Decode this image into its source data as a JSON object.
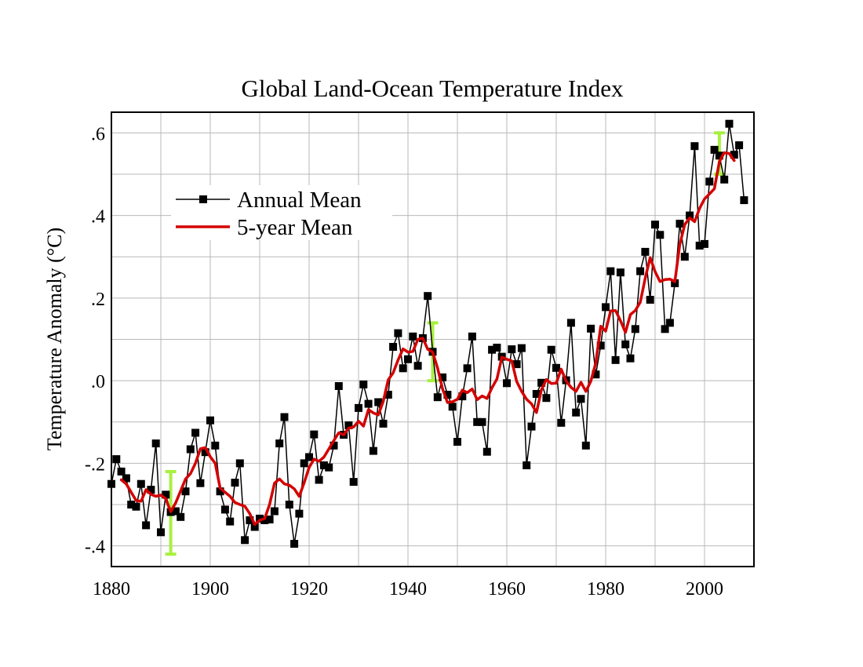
{
  "chart_data": {
    "type": "line",
    "title": "Global Land-Ocean Temperature Index",
    "xlabel": "",
    "ylabel": "Temperature Anomaly (°C)",
    "xlim": [
      1880,
      2010
    ],
    "ylim": [
      -0.45,
      0.65
    ],
    "grid": true,
    "x_grid_step": 10,
    "y_grid_step": 0.1,
    "x_ticks": [
      1880,
      1900,
      1920,
      1940,
      1960,
      1980,
      2000
    ],
    "x_tick_labels": [
      "1880",
      "1900",
      "1920",
      "1940",
      "1960",
      "1980",
      "2000"
    ],
    "y_ticks": [
      -0.4,
      -0.2,
      0.0,
      0.2,
      0.4,
      0.6
    ],
    "y_tick_labels": [
      "-.4",
      "-.2",
      ".0",
      ".2",
      ".4",
      ".6"
    ],
    "legend_position": "upper-left",
    "colors": {
      "annual": "#000000",
      "five_year": "#d40000",
      "error_bar": "#a8f040",
      "grid": "#b8b8b8",
      "frame": "#000000"
    },
    "series": [
      {
        "name": "Annual Mean",
        "style": "line-with-square-markers",
        "x": [
          1880,
          1881,
          1882,
          1883,
          1884,
          1885,
          1886,
          1887,
          1888,
          1889,
          1890,
          1891,
          1892,
          1893,
          1894,
          1895,
          1896,
          1897,
          1898,
          1899,
          1900,
          1901,
          1902,
          1903,
          1904,
          1905,
          1906,
          1907,
          1908,
          1909,
          1910,
          1911,
          1912,
          1913,
          1914,
          1915,
          1916,
          1917,
          1918,
          1919,
          1920,
          1921,
          1922,
          1923,
          1924,
          1925,
          1926,
          1927,
          1928,
          1929,
          1930,
          1931,
          1932,
          1933,
          1934,
          1935,
          1936,
          1937,
          1938,
          1939,
          1940,
          1941,
          1942,
          1943,
          1944,
          1945,
          1946,
          1947,
          1948,
          1949,
          1950,
          1951,
          1952,
          1953,
          1954,
          1955,
          1956,
          1957,
          1958,
          1959,
          1960,
          1961,
          1962,
          1963,
          1964,
          1965,
          1966,
          1967,
          1968,
          1969,
          1970,
          1971,
          1972,
          1973,
          1974,
          1975,
          1976,
          1977,
          1978,
          1979,
          1980,
          1981,
          1982,
          1983,
          1984,
          1985,
          1986,
          1987,
          1988,
          1989,
          1990,
          1991,
          1992,
          1993,
          1994,
          1995,
          1996,
          1997,
          1998,
          1999,
          2000,
          2001,
          2002,
          2003,
          2004,
          2005,
          2006,
          2007,
          2008
        ],
        "values": [
          -0.25,
          -0.19,
          -0.22,
          -0.236,
          -0.3,
          -0.305,
          -0.25,
          -0.35,
          -0.264,
          -0.152,
          -0.367,
          -0.276,
          -0.318,
          -0.316,
          -0.33,
          -0.268,
          -0.166,
          -0.126,
          -0.248,
          -0.173,
          -0.096,
          -0.157,
          -0.268,
          -0.312,
          -0.341,
          -0.247,
          -0.2,
          -0.386,
          -0.338,
          -0.354,
          -0.334,
          -0.338,
          -0.336,
          -0.316,
          -0.152,
          -0.088,
          -0.3,
          -0.395,
          -0.322,
          -0.2,
          -0.185,
          -0.13,
          -0.24,
          -0.205,
          -0.21,
          -0.157,
          -0.013,
          -0.131,
          -0.108,
          -0.245,
          -0.066,
          -0.009,
          -0.056,
          -0.17,
          -0.052,
          -0.104,
          -0.034,
          0.082,
          0.115,
          0.03,
          0.052,
          0.107,
          0.036,
          0.103,
          0.205,
          0.07,
          -0.04,
          0.008,
          -0.034,
          -0.063,
          -0.148,
          -0.038,
          0.03,
          0.107,
          -0.1,
          -0.1,
          -0.172,
          0.075,
          0.08,
          0.058,
          -0.006,
          0.076,
          0.04,
          0.079,
          -0.205,
          -0.111,
          -0.032,
          -0.005,
          -0.042,
          0.075,
          0.031,
          -0.102,
          0.001,
          0.14,
          -0.077,
          -0.044,
          -0.157,
          0.126,
          0.015,
          0.085,
          0.178,
          0.265,
          0.05,
          0.262,
          0.088,
          0.054,
          0.125,
          0.265,
          0.312,
          0.196,
          0.378,
          0.353,
          0.125,
          0.14,
          0.236,
          0.38,
          0.3,
          0.4,
          0.568,
          0.327,
          0.331,
          0.482,
          0.559,
          0.545,
          0.487,
          0.622,
          0.547,
          0.57,
          0.437
        ]
      },
      {
        "name": "5-year Mean",
        "style": "thick-line",
        "x": [
          1882,
          1883,
          1884,
          1885,
          1886,
          1887,
          1888,
          1889,
          1890,
          1891,
          1892,
          1893,
          1894,
          1895,
          1896,
          1897,
          1898,
          1899,
          1900,
          1901,
          1902,
          1903,
          1904,
          1905,
          1906,
          1907,
          1908,
          1909,
          1910,
          1911,
          1912,
          1913,
          1914,
          1915,
          1916,
          1917,
          1918,
          1919,
          1920,
          1921,
          1922,
          1923,
          1924,
          1925,
          1926,
          1927,
          1928,
          1929,
          1930,
          1931,
          1932,
          1933,
          1934,
          1935,
          1936,
          1937,
          1938,
          1939,
          1940,
          1941,
          1942,
          1943,
          1944,
          1945,
          1946,
          1947,
          1948,
          1949,
          1950,
          1951,
          1952,
          1953,
          1954,
          1955,
          1956,
          1957,
          1958,
          1959,
          1960,
          1961,
          1962,
          1963,
          1964,
          1965,
          1966,
          1967,
          1968,
          1969,
          1970,
          1971,
          1972,
          1973,
          1974,
          1975,
          1976,
          1977,
          1978,
          1979,
          1980,
          1981,
          1982,
          1983,
          1984,
          1985,
          1986,
          1987,
          1988,
          1989,
          1990,
          1991,
          1992,
          1993,
          1994,
          1995,
          1996,
          1997,
          1998,
          1999,
          2000,
          2001,
          2002,
          2003,
          2004,
          2005,
          2006
        ],
        "values": [
          -0.24,
          -0.25,
          -0.27,
          -0.29,
          -0.292,
          -0.264,
          -0.275,
          -0.28,
          -0.277,
          -0.286,
          -0.317,
          -0.296,
          -0.267,
          -0.238,
          -0.225,
          -0.2,
          -0.165,
          -0.162,
          -0.184,
          -0.2,
          -0.26,
          -0.27,
          -0.28,
          -0.295,
          -0.3,
          -0.304,
          -0.322,
          -0.348,
          -0.338,
          -0.334,
          -0.3,
          -0.248,
          -0.238,
          -0.25,
          -0.253,
          -0.262,
          -0.28,
          -0.247,
          -0.21,
          -0.19,
          -0.195,
          -0.185,
          -0.165,
          -0.145,
          -0.126,
          -0.131,
          -0.115,
          -0.112,
          -0.098,
          -0.11,
          -0.07,
          -0.078,
          -0.083,
          -0.05,
          0.002,
          0.019,
          0.05,
          0.077,
          0.069,
          0.071,
          0.1,
          0.103,
          0.076,
          0.069,
          0.03,
          -0.02,
          -0.053,
          -0.051,
          -0.045,
          -0.023,
          -0.029,
          -0.02,
          -0.046,
          -0.037,
          -0.043,
          -0.017,
          0.004,
          0.057,
          0.052,
          0.048,
          -0.002,
          -0.026,
          -0.045,
          -0.056,
          -0.077,
          -0.022,
          0.003,
          -0.007,
          -0.006,
          0.028,
          -0.001,
          -0.016,
          -0.026,
          -0.004,
          -0.026,
          -0.001,
          0.043,
          0.132,
          0.12,
          0.169,
          0.17,
          0.145,
          0.117,
          0.16,
          0.17,
          0.19,
          0.248,
          0.298,
          0.264,
          0.24,
          0.245,
          0.246,
          0.24,
          0.33,
          0.378,
          0.394,
          0.385,
          0.417,
          0.44,
          0.452,
          0.465,
          0.53,
          0.552,
          0.55,
          0.533
        ]
      }
    ],
    "error_bars": [
      {
        "x": 1892,
        "low": -0.42,
        "high": -0.22
      },
      {
        "x": 1945,
        "low": 0.0,
        "high": 0.14
      },
      {
        "x": 2003,
        "low": 0.5,
        "high": 0.6
      }
    ]
  }
}
